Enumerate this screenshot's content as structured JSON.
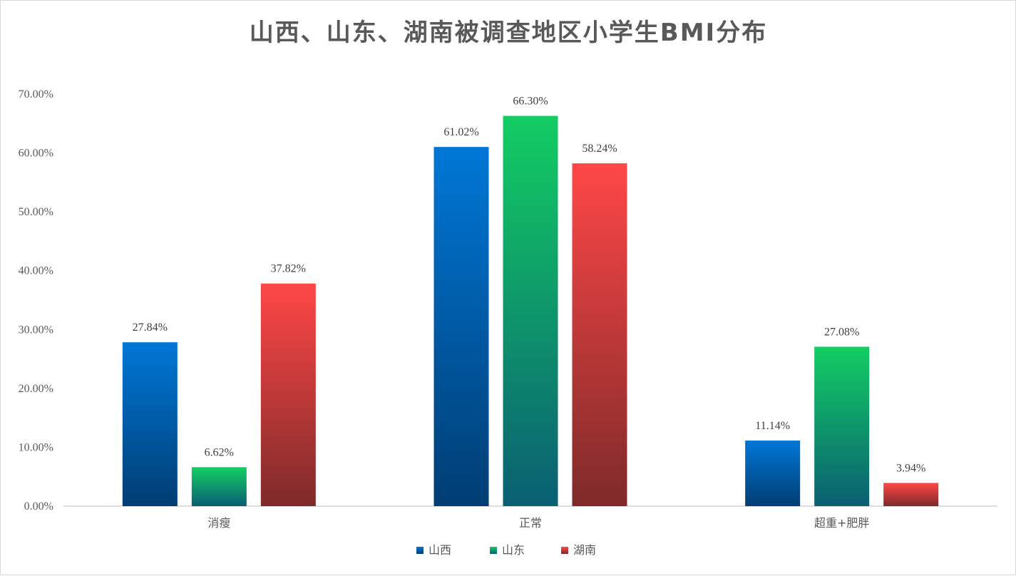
{
  "chart_data": {
    "type": "bar",
    "title": "山西、山东、湖南被调查地区小学生BMI分布",
    "categories": [
      "消瘦",
      "正常",
      "超重+肥胖"
    ],
    "series": [
      {
        "name": "山西",
        "values": [
          27.84,
          61.02,
          11.14
        ],
        "labels": [
          "27.84%",
          "61.02%",
          "11.14%"
        ],
        "color_top": "#0077d6",
        "color_bottom": "#003d73"
      },
      {
        "name": "山东",
        "values": [
          6.62,
          66.3,
          27.08
        ],
        "labels": [
          "6.62%",
          "66.30%",
          "27.08%"
        ],
        "color_top": "#13cd63",
        "color_bottom": "#0a5f72"
      },
      {
        "name": "湖南",
        "values": [
          37.82,
          58.24,
          3.94
        ],
        "labels": [
          "37.82%",
          "58.24%",
          "3.94%"
        ],
        "color_top": "#ff4747",
        "color_bottom": "#7e2a2a"
      }
    ],
    "ylim": [
      0,
      70
    ],
    "yticks": [
      {
        "value": 0,
        "label": "0.00%"
      },
      {
        "value": 10,
        "label": "10.00%"
      },
      {
        "value": 20,
        "label": "20.00%"
      },
      {
        "value": 30,
        "label": "30.00%"
      },
      {
        "value": 40,
        "label": "40.00%"
      },
      {
        "value": 50,
        "label": "50.00%"
      },
      {
        "value": 60,
        "label": "60.00%"
      },
      {
        "value": 70,
        "label": "70.00%"
      }
    ],
    "xlabel": "",
    "ylabel": "",
    "grid": false,
    "legend_position": "bottom"
  }
}
